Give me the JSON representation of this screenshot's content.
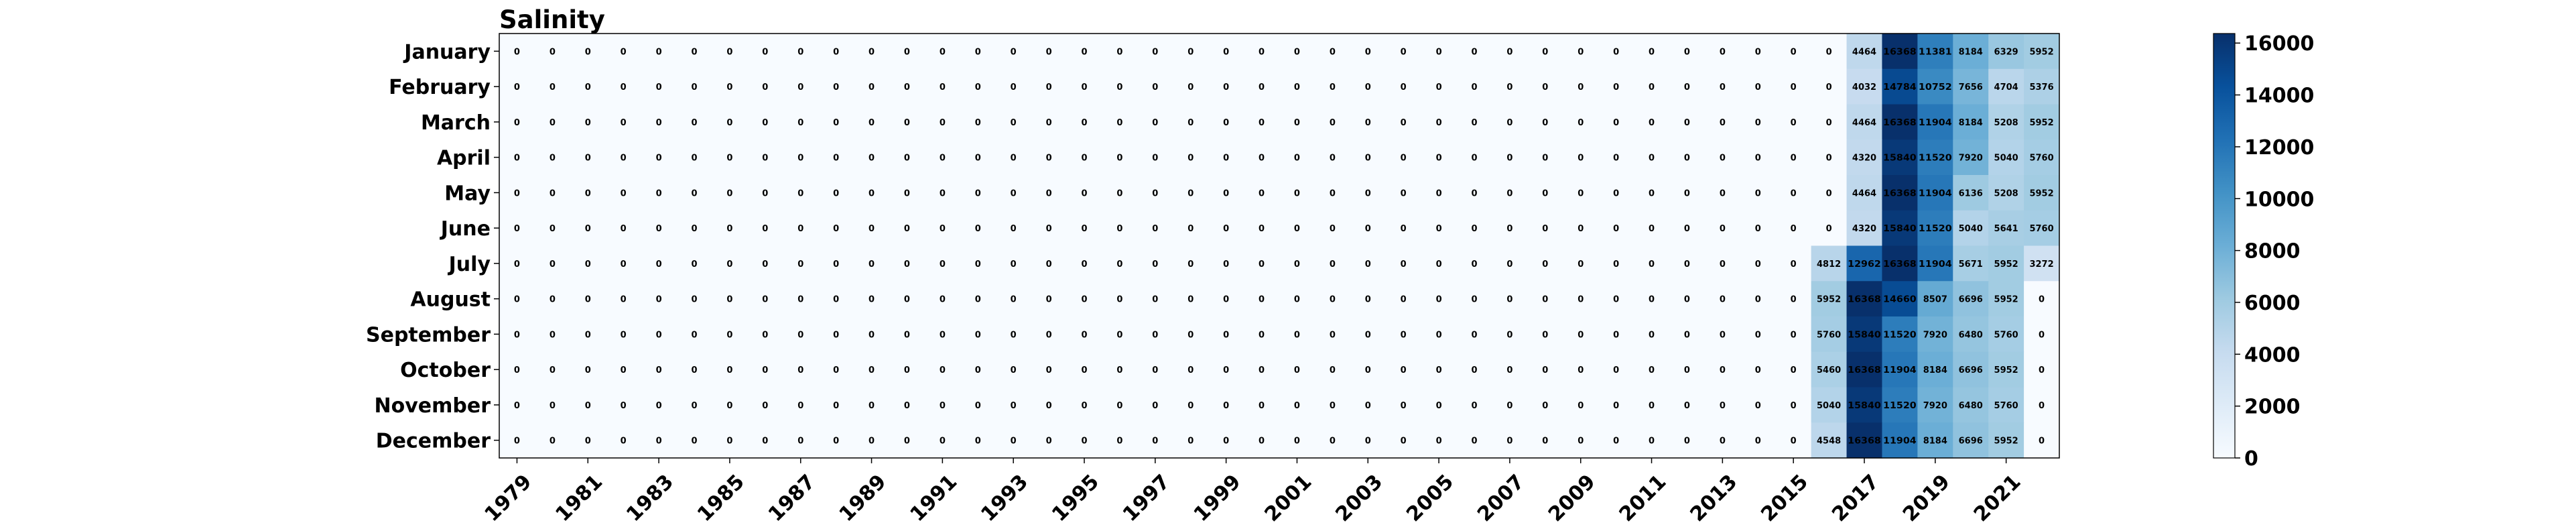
{
  "chart_data": {
    "type": "heatmap",
    "title": "Salinity",
    "xlabel": "",
    "ylabel": "",
    "x_categories": [
      1979,
      1980,
      1981,
      1982,
      1983,
      1984,
      1985,
      1986,
      1987,
      1988,
      1989,
      1990,
      1991,
      1992,
      1993,
      1994,
      1995,
      1996,
      1997,
      1998,
      1999,
      2000,
      2001,
      2002,
      2003,
      2004,
      2005,
      2006,
      2007,
      2008,
      2009,
      2010,
      2011,
      2012,
      2013,
      2014,
      2015,
      2016,
      2017,
      2018,
      2019,
      2020,
      2021,
      2022
    ],
    "x_tick_labels": [
      "1979",
      "1981",
      "1983",
      "1985",
      "1987",
      "1989",
      "1991",
      "1993",
      "1995",
      "1997",
      "1999",
      "2001",
      "2003",
      "2005",
      "2007",
      "2009",
      "2011",
      "2013",
      "2015",
      "2017",
      "2019",
      "2021"
    ],
    "y_categories": [
      "January",
      "February",
      "March",
      "April",
      "May",
      "June",
      "July",
      "August",
      "September",
      "October",
      "November",
      "December"
    ],
    "year_start": 1979,
    "nonzero": {
      "January": {
        "2017": 4464,
        "2018": 16368,
        "2019": 11381,
        "2020": 8184,
        "2021": 6329,
        "2022": 5952
      },
      "February": {
        "2017": 4032,
        "2018": 14784,
        "2019": 10752,
        "2020": 7656,
        "2021": 4704,
        "2022": 5376
      },
      "March": {
        "2017": 4464,
        "2018": 16368,
        "2019": 11904,
        "2020": 8184,
        "2021": 5208,
        "2022": 5952
      },
      "April": {
        "2017": 4320,
        "2018": 15840,
        "2019": 11520,
        "2020": 7920,
        "2021": 5040,
        "2022": 5760
      },
      "May": {
        "2017": 4464,
        "2018": 16368,
        "2019": 11904,
        "2020": 6136,
        "2021": 5208,
        "2022": 5952
      },
      "June": {
        "2017": 4320,
        "2018": 15840,
        "2019": 11520,
        "2020": 5040,
        "2021": 5641,
        "2022": 5760
      },
      "July": {
        "2016": 4812,
        "2017": 12962,
        "2018": 16368,
        "2019": 11904,
        "2020": 5671,
        "2021": 5952,
        "2022": 3272
      },
      "August": {
        "2016": 5952,
        "2017": 16368,
        "2018": 14660,
        "2019": 8507,
        "2020": 6696,
        "2021": 5952
      },
      "September": {
        "2016": 5760,
        "2017": 15840,
        "2018": 11520,
        "2019": 7920,
        "2020": 6480,
        "2021": 5760
      },
      "October": {
        "2016": 5460,
        "2017": 16368,
        "2018": 11904,
        "2019": 8184,
        "2020": 6696,
        "2021": 5952
      },
      "November": {
        "2016": 5040,
        "2017": 15840,
        "2018": 11520,
        "2019": 7920,
        "2020": 6480,
        "2021": 5760
      },
      "December": {
        "2016": 4548,
        "2017": 16368,
        "2018": 11904,
        "2019": 8184,
        "2020": 6696,
        "2021": 5952
      }
    },
    "color_range": [
      0,
      16368
    ],
    "colormap": "Blues",
    "colorbar_ticks": [
      0,
      2000,
      4000,
      6000,
      8000,
      10000,
      12000,
      14000,
      16000
    ],
    "grid": false,
    "legend": "colorbar-right"
  }
}
